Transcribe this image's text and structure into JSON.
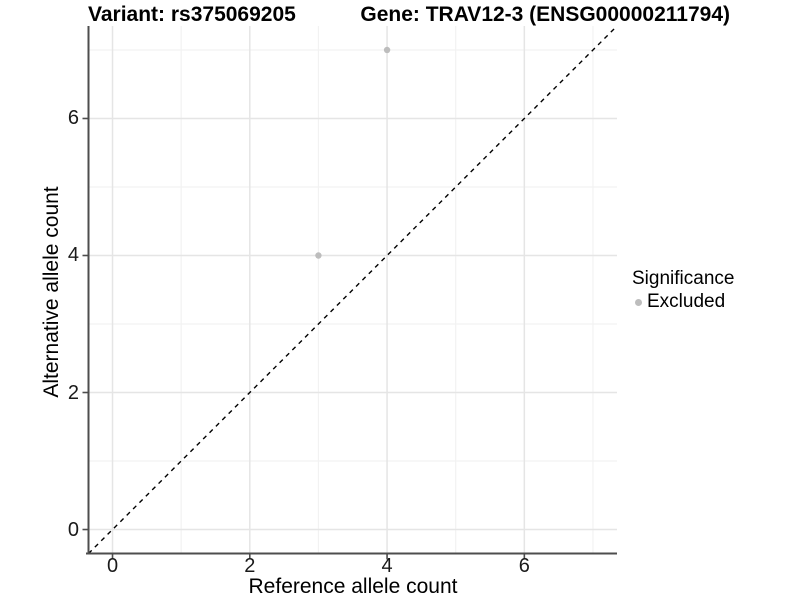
{
  "titles": {
    "left": "Variant: rs375069205",
    "right": "Gene: TRAV12-3 (ENSG00000211794)"
  },
  "chart_data": {
    "type": "scatter",
    "title": "Variant: rs375069205 — Gene: TRAV12-3 (ENSG00000211794)",
    "xlabel": "Reference allele count",
    "ylabel": "Alternative allele count",
    "xlim": [
      -0.35,
      7.35
    ],
    "ylim": [
      -0.35,
      7.35
    ],
    "x_ticks": [
      0,
      2,
      4,
      6
    ],
    "y_ticks": [
      0,
      2,
      4,
      6
    ],
    "x_minor_ticks": [
      1,
      3,
      5,
      7
    ],
    "y_minor_ticks": [
      1,
      3,
      5,
      7
    ],
    "grid": "major and minor, light grey on white",
    "series": [
      {
        "name": "Excluded",
        "color": "#bdbdbd",
        "points": [
          {
            "x": 4,
            "y": 7
          },
          {
            "x": 3,
            "y": 4
          }
        ]
      }
    ],
    "reference_line": {
      "type": "identity y=x",
      "style": "dashed",
      "color": "#000000"
    },
    "legend": {
      "title": "Significance",
      "position": "right",
      "items": [
        {
          "label": "Excluded",
          "color": "#bdbdbd"
        }
      ]
    }
  },
  "colors": {
    "axis": "#4d4d4d",
    "tick": "#4d4d4d",
    "grid_major": "#e5e5e5",
    "grid_minor": "#f2f2f2",
    "point": "#bdbdbd",
    "dashed_line": "#000000",
    "background": "#ffffff"
  }
}
